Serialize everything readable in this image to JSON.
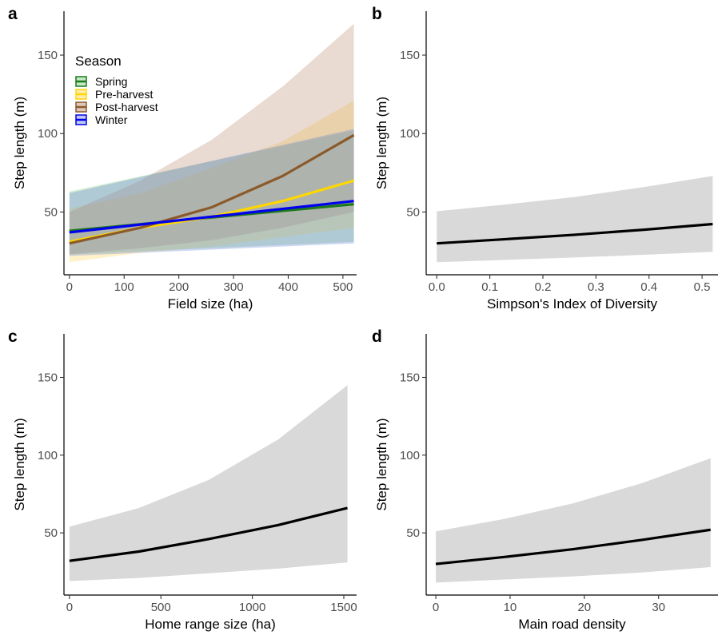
{
  "chart_data": [
    {
      "panel": "a",
      "type": "line",
      "xlabel": "Field size (ha)",
      "ylabel": "Step length (m)",
      "xlim": [
        -10,
        525
      ],
      "ylim": [
        10,
        178
      ],
      "xticks": [
        0,
        100,
        200,
        300,
        400,
        500
      ],
      "yticks": [
        50,
        100,
        150
      ],
      "legend": {
        "title": "Season",
        "position": "top-left"
      },
      "series": [
        {
          "name": "Spring",
          "color": "#1b7a1b",
          "fill": "#7cc97c",
          "fill_opacity": 0.35,
          "x": [
            0,
            520
          ],
          "y": [
            38,
            55
          ],
          "band_x": [
            0,
            520
          ],
          "band_lower": [
            23,
            31
          ],
          "band_upper": [
            63,
            102
          ]
        },
        {
          "name": "Pre-harvest",
          "color": "#ffd700",
          "fill": "#ffd34d",
          "fill_opacity": 0.3,
          "x": [
            0,
            130,
            260,
            390,
            520
          ],
          "y": [
            31,
            40,
            47,
            57,
            70
          ],
          "band_x": [
            0,
            130,
            260,
            390,
            520
          ],
          "band_lower": [
            18,
            24,
            28,
            34,
            40
          ],
          "band_upper": [
            52,
            62,
            78,
            95,
            121
          ]
        },
        {
          "name": "Post-harvest",
          "color": "#8b5a2b",
          "fill": "#b5866a",
          "fill_opacity": 0.3,
          "x": [
            0,
            130,
            260,
            390,
            520
          ],
          "y": [
            30,
            40,
            53,
            73,
            99
          ],
          "band_x": [
            0,
            130,
            260,
            390,
            520
          ],
          "band_lower": [
            23,
            27,
            32,
            40,
            50
          ],
          "band_upper": [
            50,
            70,
            96,
            130,
            170
          ]
        },
        {
          "name": "Winter",
          "color": "#0000ee",
          "fill": "#6f8cd9",
          "fill_opacity": 0.35,
          "x": [
            0,
            520
          ],
          "y": [
            37,
            57
          ],
          "band_x": [
            0,
            520
          ],
          "band_lower": [
            22,
            30
          ],
          "band_upper": [
            62,
            103
          ]
        }
      ]
    },
    {
      "panel": "b",
      "type": "line",
      "xlabel": "Simpson's Index of Diversity",
      "ylabel": "Step length (m)",
      "xlim": [
        -0.02,
        0.53
      ],
      "ylim": [
        10,
        178
      ],
      "xticks": [
        "0.0",
        "0.1",
        "0.2",
        "0.3",
        "0.4",
        "0.5"
      ],
      "yticks": [
        50,
        100,
        150
      ],
      "series": [
        {
          "color": "#000000",
          "fill": "#d9d9d9",
          "x": [
            0,
            0.13,
            0.26,
            0.39,
            0.52
          ],
          "y": [
            30,
            32.7,
            35.5,
            38.7,
            42.3
          ],
          "band_x": [
            0,
            0.13,
            0.26,
            0.39,
            0.52
          ],
          "band_lower": [
            18,
            19.5,
            21,
            22.7,
            24.6
          ],
          "band_upper": [
            50.5,
            54.8,
            59.6,
            65.9,
            73
          ]
        }
      ]
    },
    {
      "panel": "c",
      "type": "line",
      "xlabel": "Home range size (ha)",
      "ylabel": "Step length (m)",
      "xlim": [
        -30,
        1570
      ],
      "ylim": [
        10,
        178
      ],
      "xticks": [
        0,
        500,
        1000,
        1500
      ],
      "yticks": [
        50,
        100,
        150
      ],
      "series": [
        {
          "color": "#000000",
          "fill": "#d9d9d9",
          "x": [
            0,
            380,
            760,
            1140,
            1520
          ],
          "y": [
            32,
            38,
            46,
            55,
            66
          ],
          "band_x": [
            0,
            380,
            760,
            1140,
            1520
          ],
          "band_lower": [
            19,
            21,
            24,
            27,
            31
          ],
          "band_upper": [
            54,
            66,
            84,
            110,
            145
          ]
        }
      ]
    },
    {
      "panel": "d",
      "type": "line",
      "xlabel": "Main road density",
      "ylabel": "Step length (m)",
      "xlim": [
        -1.3,
        38
      ],
      "ylim": [
        10,
        178
      ],
      "xticks": [
        0,
        10,
        20,
        30
      ],
      "yticks": [
        50,
        100,
        150
      ],
      "series": [
        {
          "color": "#000000",
          "fill": "#d9d9d9",
          "x": [
            0,
            9.25,
            18.5,
            27.75,
            37
          ],
          "y": [
            30,
            34.5,
            39.5,
            45.5,
            52
          ],
          "band_x": [
            0,
            9.25,
            18.5,
            27.75,
            37
          ],
          "band_lower": [
            18,
            20,
            22,
            24.5,
            28
          ],
          "band_upper": [
            51,
            59,
            69,
            82,
            98
          ]
        }
      ]
    }
  ]
}
